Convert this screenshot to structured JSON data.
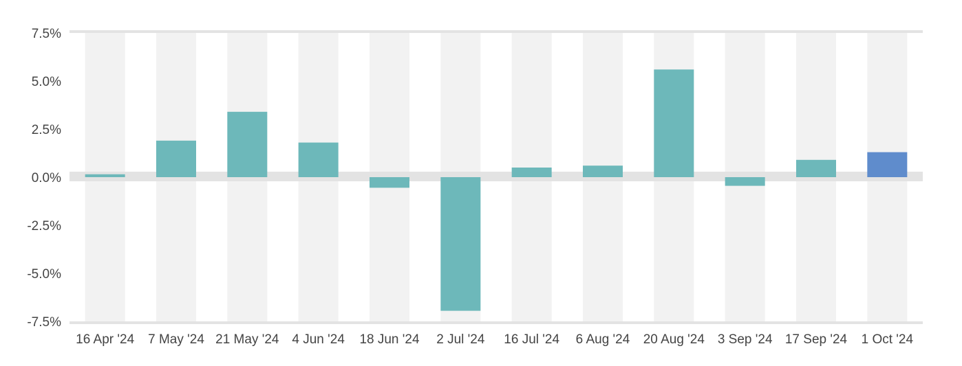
{
  "chart_data": {
    "type": "bar",
    "title": "",
    "xlabel": "",
    "ylabel": "",
    "categories": [
      "16 Apr '24",
      "7 May '24",
      "21 May '24",
      "4 Jun '24",
      "18 Jun '24",
      "2 Jul '24",
      "16 Jul '24",
      "6 Aug '24",
      "20 Aug '24",
      "3 Sep '24",
      "17 Sep '24",
      "1 Oct '24"
    ],
    "values": [
      0.15,
      1.9,
      3.4,
      1.8,
      -0.55,
      -6.95,
      0.5,
      0.6,
      5.6,
      -0.45,
      0.9,
      1.3
    ],
    "ylim": [
      -7.5,
      7.5
    ],
    "yticks": [
      -7.5,
      -5.0,
      -2.5,
      0.0,
      2.5,
      5.0,
      7.5
    ],
    "ytick_labels": [
      "-7.5%",
      "-5.0%",
      "-2.5%",
      "0.0%",
      "2.5%",
      "5.0%",
      "7.5%"
    ],
    "grid": false,
    "alternating_bands": true,
    "colors": {
      "bar": "#6db8ba",
      "highlight_bar": "#5f8ccc",
      "band": "#f2f2f2",
      "zero_band": "#e3e3e3",
      "axis_line": "#e3e3e3"
    },
    "highlight_index": 11
  }
}
